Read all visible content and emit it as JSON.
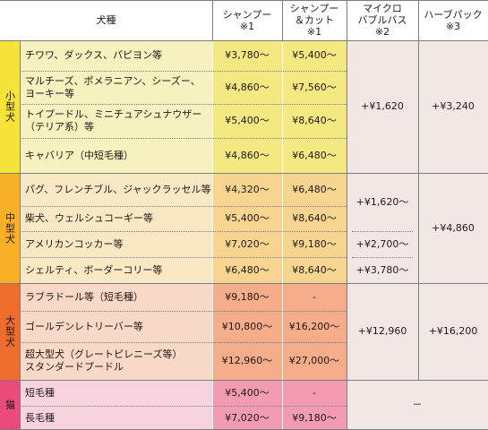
{
  "colors": {
    "small_cat": "#f6e33a",
    "small_light": "#f7f1bf",
    "small_dark": "#f3e882",
    "medium_cat": "#f7b028",
    "medium_light": "#fae8c5",
    "medium_dark": "#f7d590",
    "large_cat": "#ef6c2f",
    "large_light": "#f8d8c6",
    "large_dark": "#f3ad8a",
    "cat_cat": "#ea4b7b",
    "cat_light": "#f9d3de",
    "cat_dark": "#f29bb3",
    "side_group": "#f1e8e6"
  },
  "header": {
    "breed": "犬種",
    "shampoo": "シャンプー\n※1",
    "shampoo_cut": "シャンプー\n＆カット\n※1",
    "micro_bubble": "マイクロ\nバブルバス\n※2",
    "herb_pack": "ハーブパック\n※3"
  },
  "categories": {
    "small": "小型犬",
    "medium": "中型犬",
    "large": "大型犬",
    "cat": "猫"
  },
  "rows": [
    {
      "breed": "チワワ、ダックス、パピヨン等",
      "shampoo": "¥3,780～",
      "cut": "¥5,400～"
    },
    {
      "breed": "マルチーズ、ポメラニアン、シーズー、\nヨーキー等",
      "shampoo": "¥4,860～",
      "cut": "¥7,560～"
    },
    {
      "breed": "トイプードル、ミニチュアシュナウザー\n（テリア系）等",
      "shampoo": "¥5,400～",
      "cut": "¥8,640～"
    },
    {
      "breed": "キャバリア（中短毛種）",
      "shampoo": "¥4,860～",
      "cut": "¥6,480～"
    },
    {
      "breed": "パグ、フレンチブル、ジャックラッセル等",
      "shampoo": "¥4,320～",
      "cut": "¥6,480～"
    },
    {
      "breed": "柴犬、ウェルシュコーギー等",
      "shampoo": "¥5,400～",
      "cut": "¥8,640～"
    },
    {
      "breed": "アメリカンコッカー等",
      "shampoo": "¥7,020～",
      "cut": "¥9,180～"
    },
    {
      "breed": "シェルティ、ボーダーコリー等",
      "shampoo": "¥6,480～",
      "cut": "¥8,640～"
    },
    {
      "breed": "ラブラドール等（短毛種）",
      "shampoo": "¥9,180～",
      "cut": "-"
    },
    {
      "breed": "ゴールデンレトリーバー等",
      "shampoo": "¥10,800～",
      "cut": "¥16,200～"
    },
    {
      "breed": "超大型犬（グレートピレニーズ等）\nスタンダードプードル",
      "shampoo": "¥12,960～",
      "cut": "¥27,000～"
    },
    {
      "breed": "短毛種",
      "shampoo": "¥5,400～",
      "cut": "-"
    },
    {
      "breed": "長毛種",
      "shampoo": "¥7,020～",
      "cut": "¥9,180～"
    }
  ],
  "options": {
    "small_micro": "+¥1,620",
    "small_herb": "+¥3,240",
    "medium_micro_1": "+¥1,620～",
    "medium_micro_2": "+¥2,700～",
    "medium_micro_3": "+¥3,780～",
    "medium_herb": "+¥4,860",
    "large_micro": "+¥12,960",
    "large_herb": "+¥16,200",
    "cat_option": "－"
  }
}
